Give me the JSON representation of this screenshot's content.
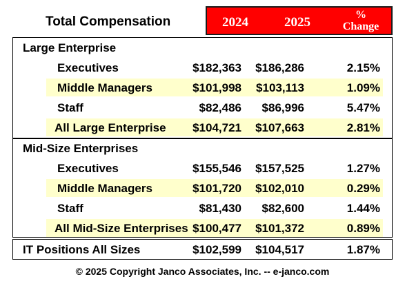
{
  "header": {
    "title": "Total Compensation",
    "col_2024": "2024",
    "col_2025": "2025",
    "col_change": "% Change"
  },
  "sections": [
    {
      "title": "Large Enterprise",
      "rows": [
        {
          "label": "Executives",
          "v2024": "$182,363",
          "v2025": "$186,286",
          "change": "2.15%",
          "highlight": false
        },
        {
          "label": "Middle Managers",
          "v2024": "$101,998",
          "v2025": "$103,113",
          "change": "1.09%",
          "highlight": true
        },
        {
          "label": "Staff",
          "v2024": "$82,486",
          "v2025": "$86,996",
          "change": "5.47%",
          "highlight": false
        },
        {
          "label": "All Large Enterprise",
          "v2024": "$104,721",
          "v2025": "$107,663",
          "change": "2.81%",
          "highlight": true
        }
      ]
    },
    {
      "title": "Mid-Size Enterprises",
      "rows": [
        {
          "label": "Executives",
          "v2024": "$155,546",
          "v2025": "$157,525",
          "change": "1.27%",
          "highlight": false
        },
        {
          "label": "Middle Managers",
          "v2024": "$101,720",
          "v2025": "$102,010",
          "change": "0.29%",
          "highlight": true
        },
        {
          "label": "Staff",
          "v2024": "$81,430",
          "v2025": "$82,600",
          "change": "1.44%",
          "highlight": false
        },
        {
          "label": "All Mid-Size Enterprises",
          "v2024": "$100,477",
          "v2025": "$101,372",
          "change": "0.89%",
          "highlight": true
        }
      ]
    }
  ],
  "total": {
    "label": "IT Positions All Sizes",
    "v2024": "$102,599",
    "v2025": "$104,517",
    "change": "1.87%"
  },
  "footer": "© 2025 Copyright Janco Associates, Inc.  -- e-janco.com"
}
